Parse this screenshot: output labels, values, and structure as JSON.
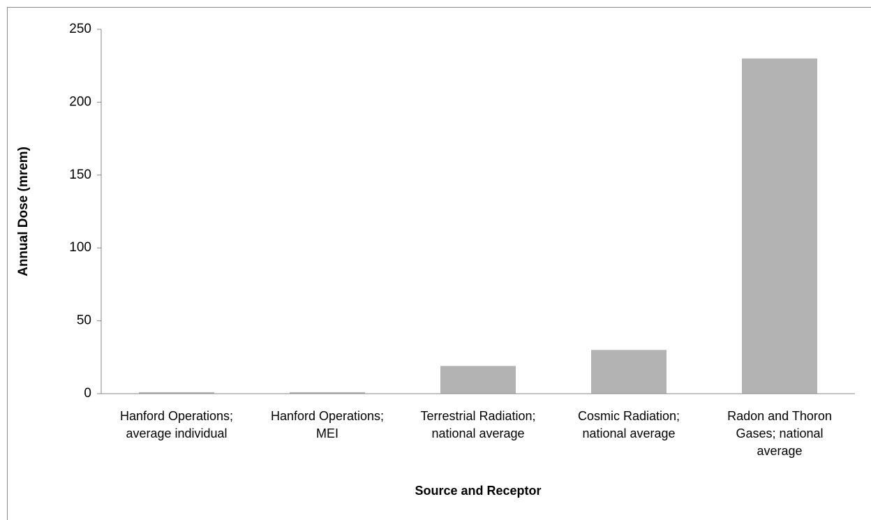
{
  "chart_data": {
    "type": "bar",
    "x_label": "Source and Receptor",
    "y_label": "Annual Dose (mrem)",
    "categories": [
      "Hanford Operations; average individual",
      "Hanford Operations; MEI",
      "Terrestrial Radiation; national average",
      "Cosmic Radiation; national average",
      "Radon and Thoron Gases; national average"
    ],
    "values": [
      1,
      1,
      19,
      30,
      230
    ],
    "color": "#b3b3b3",
    "ylim": [
      0,
      250
    ],
    "yticks": [
      0,
      50,
      100,
      150,
      200,
      250
    ],
    "grid": false
  }
}
